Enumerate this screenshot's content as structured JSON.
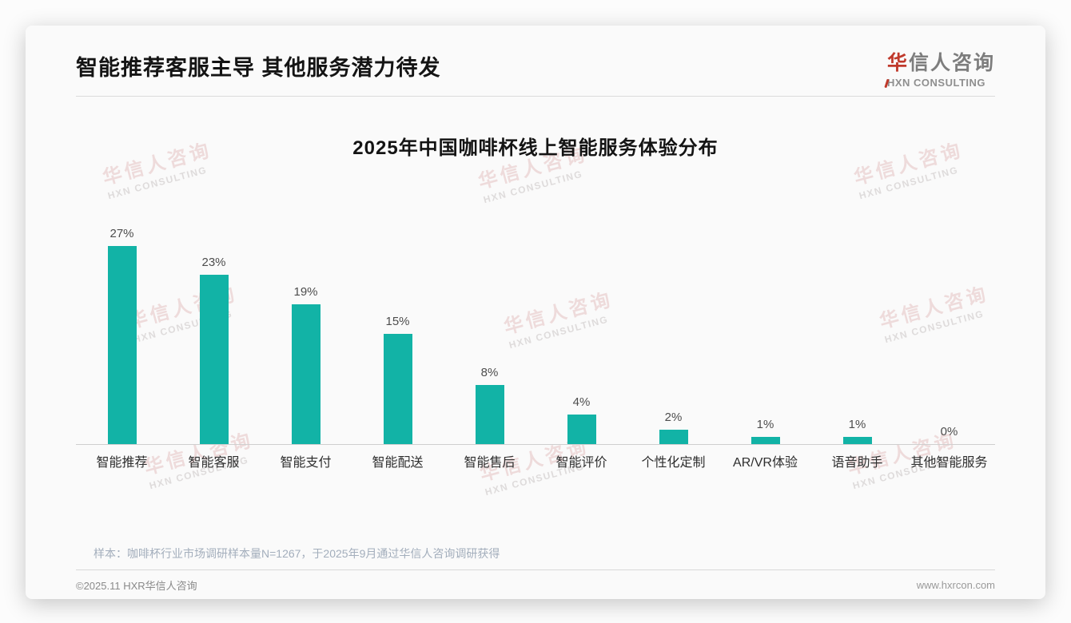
{
  "header": {
    "title": "智能推荐客服主导 其他服务潜力待发",
    "logo": {
      "cn_accent": "华",
      "cn_rest": "信人咨询",
      "en": "HXN CONSULTING"
    }
  },
  "chart_data": {
    "type": "bar",
    "title": "2025年中国咖啡杯线上智能服务体验分布",
    "categories": [
      "智能推荐",
      "智能客服",
      "智能支付",
      "智能配送",
      "智能售后",
      "智能评价",
      "个性化定制",
      "AR/VR体验",
      "语音助手",
      "其他智能服务"
    ],
    "values": [
      27,
      23,
      19,
      15,
      8,
      4,
      2,
      1,
      1,
      0
    ],
    "value_labels": [
      "27%",
      "23%",
      "19%",
      "15%",
      "8%",
      "4%",
      "2%",
      "1%",
      "1%",
      "0%"
    ],
    "unit": "%",
    "ylim": [
      0,
      27
    ],
    "xlabel": "",
    "ylabel": "",
    "grid": false,
    "legend": false,
    "value_labels_position": "above-bars",
    "bar_color": "#12b3a6"
  },
  "watermark": {
    "cn": "华信人咨询",
    "en": "HXN CONSULTING"
  },
  "footnote": "样本：咖啡杯行业市场调研样本量N=1267，于2025年9月通过华信人咨询调研获得",
  "footer": {
    "copyright": "©2025.11 HXR华信人咨询",
    "website": "www.hxrcon.com"
  },
  "colors": {
    "bar": "#12b3a6",
    "logo_red": "#c0392b"
  }
}
